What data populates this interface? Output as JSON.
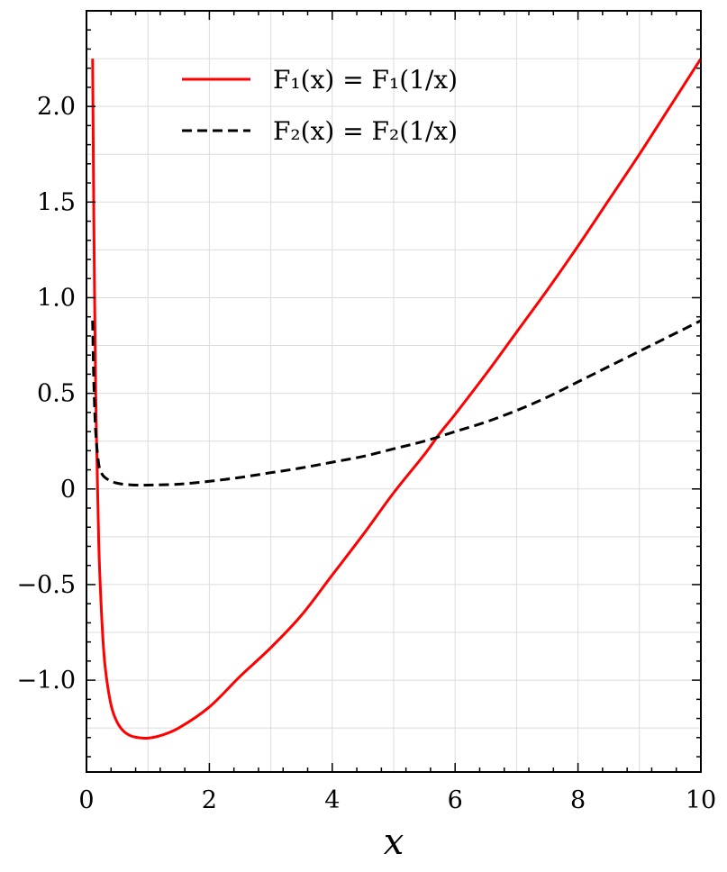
{
  "chart_data": {
    "type": "line",
    "title": "",
    "xlabel": "x",
    "ylabel": "",
    "xlim": [
      0,
      10
    ],
    "ylim": [
      -1.48,
      2.5
    ],
    "xticks": [
      0,
      2,
      4,
      6,
      8,
      10
    ],
    "xtick_labels": [
      "0",
      "2",
      "4",
      "6",
      "8",
      "10"
    ],
    "yticks": [
      -1.0,
      -0.5,
      0,
      0.5,
      1.0,
      1.5,
      2.0
    ],
    "ytick_labels": [
      "−1.0",
      "−0.5",
      "0",
      "0.5",
      "1.0",
      "1.5",
      "2.0"
    ],
    "grid": true,
    "legend_position": "top-center",
    "series": [
      {
        "name": "F₁(x) = F₁(1/x)",
        "color": "#ff0000",
        "style": "solid",
        "x": [
          0.1,
          0.12,
          0.15,
          0.2,
          0.25,
          0.3,
          0.4,
          0.5,
          0.6,
          0.7,
          0.8,
          0.9,
          1.0,
          1.2,
          1.5,
          2.0,
          2.5,
          3.0,
          3.5,
          4.0,
          4.5,
          5.0,
          5.5,
          5.75,
          6.0,
          6.5,
          7.0,
          7.5,
          8.0,
          8.5,
          9.0,
          9.5,
          10.0
        ],
        "y": [
          2.25,
          1.4,
          0.52,
          -0.28,
          -0.68,
          -0.92,
          -1.13,
          -1.22,
          -1.265,
          -1.288,
          -1.298,
          -1.302,
          -1.303,
          -1.29,
          -1.25,
          -1.14,
          -0.98,
          -0.83,
          -0.66,
          -0.45,
          -0.24,
          -0.02,
          0.18,
          0.29,
          0.39,
          0.6,
          0.82,
          1.04,
          1.27,
          1.51,
          1.75,
          2.0,
          2.25
        ]
      },
      {
        "name": "F₂(x) = F₂(1/x)",
        "color": "#000000",
        "style": "dashed",
        "x": [
          0.1,
          0.12,
          0.15,
          0.2,
          0.25,
          0.3,
          0.4,
          0.5,
          0.6,
          0.8,
          1.0,
          1.5,
          2.0,
          2.5,
          3.0,
          3.5,
          4.0,
          4.5,
          5.0,
          5.5,
          6.0,
          6.5,
          7.0,
          7.5,
          8.0,
          8.5,
          9.0,
          9.5,
          10.0
        ],
        "y": [
          0.88,
          0.55,
          0.3,
          0.13,
          0.08,
          0.06,
          0.04,
          0.03,
          0.025,
          0.02,
          0.02,
          0.025,
          0.04,
          0.06,
          0.085,
          0.11,
          0.14,
          0.17,
          0.21,
          0.25,
          0.3,
          0.35,
          0.41,
          0.48,
          0.56,
          0.64,
          0.72,
          0.8,
          0.88
        ]
      }
    ]
  }
}
